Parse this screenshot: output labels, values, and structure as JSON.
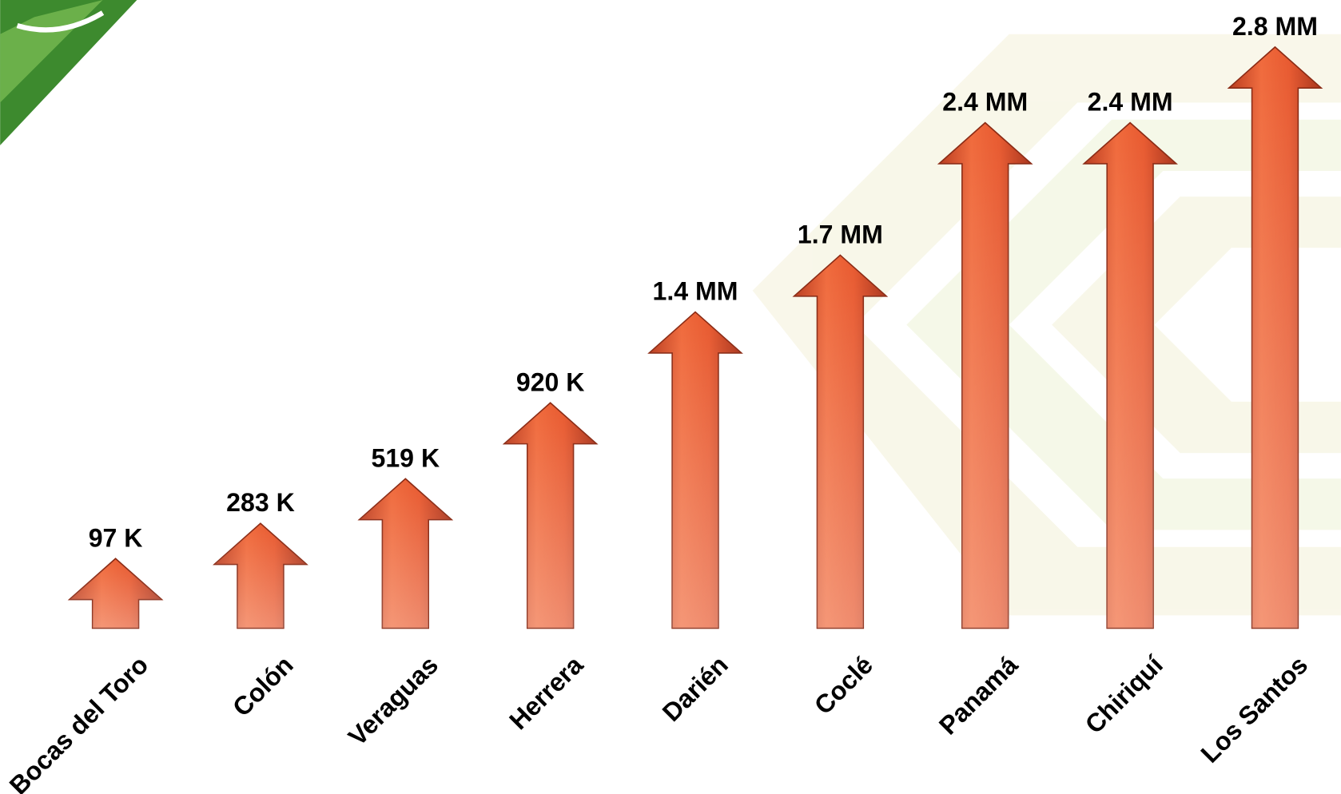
{
  "chart_data": {
    "type": "bar",
    "categories": [
      "Bocas del Toro",
      "Colón",
      "Veraguas",
      "Herrera",
      "Darién",
      "Coclé",
      "Panamá",
      "Chiriquí",
      "Los Santos"
    ],
    "values": [
      97000,
      283000,
      519000,
      920000,
      1400000,
      1700000,
      2400000,
      2400000,
      2800000
    ],
    "value_labels": [
      "97 K",
      "283 K",
      "519 K",
      "920 K",
      "1.4 MM",
      "1.7 MM",
      "2.4 MM",
      "2.4 MM",
      "2.8 MM"
    ],
    "color": "#e2542a"
  }
}
